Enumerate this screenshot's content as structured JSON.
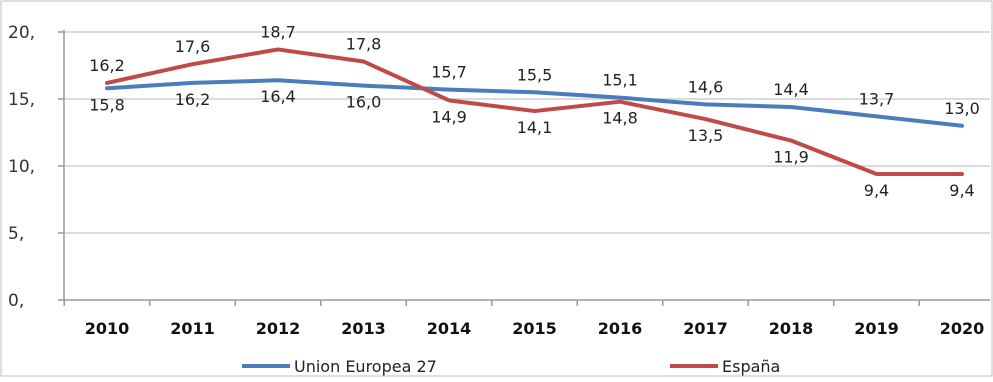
{
  "chart_data": {
    "type": "line",
    "title": "",
    "xlabel": "",
    "ylabel": "",
    "x": [
      "2010",
      "2011",
      "2012",
      "2013",
      "2014",
      "2015",
      "2016",
      "2017",
      "2018",
      "2019",
      "2020"
    ],
    "ylim": [
      0,
      20
    ],
    "yticks": [
      0,
      5,
      10,
      15,
      20
    ],
    "ytick_labels": [
      "0,",
      "5,",
      "10,",
      "15,",
      "20,"
    ],
    "grid": "horizontal",
    "legend_position": "bottom",
    "series": [
      {
        "name": "Union Europea 27",
        "color": "#4a7ebb",
        "values": [
          15.8,
          16.2,
          16.4,
          16.0,
          15.7,
          15.5,
          15.1,
          14.6,
          14.4,
          13.7,
          13.0
        ],
        "labels": [
          "15,8",
          "16,2",
          "16,4",
          "16,0",
          "15,7",
          "15,5",
          "15,1",
          "14,6",
          "14,4",
          "13,7",
          "13,0"
        ]
      },
      {
        "name": "España",
        "color": "#be4b48",
        "values": [
          16.2,
          17.6,
          18.7,
          17.8,
          14.9,
          14.1,
          14.8,
          13.5,
          11.9,
          9.4,
          9.4
        ],
        "labels": [
          "16,2",
          "17,6",
          "18,7",
          "17,8",
          "14,9",
          "14,1",
          "14,8",
          "13,5",
          "11,9",
          "9,4",
          "9,4"
        ]
      }
    ]
  }
}
